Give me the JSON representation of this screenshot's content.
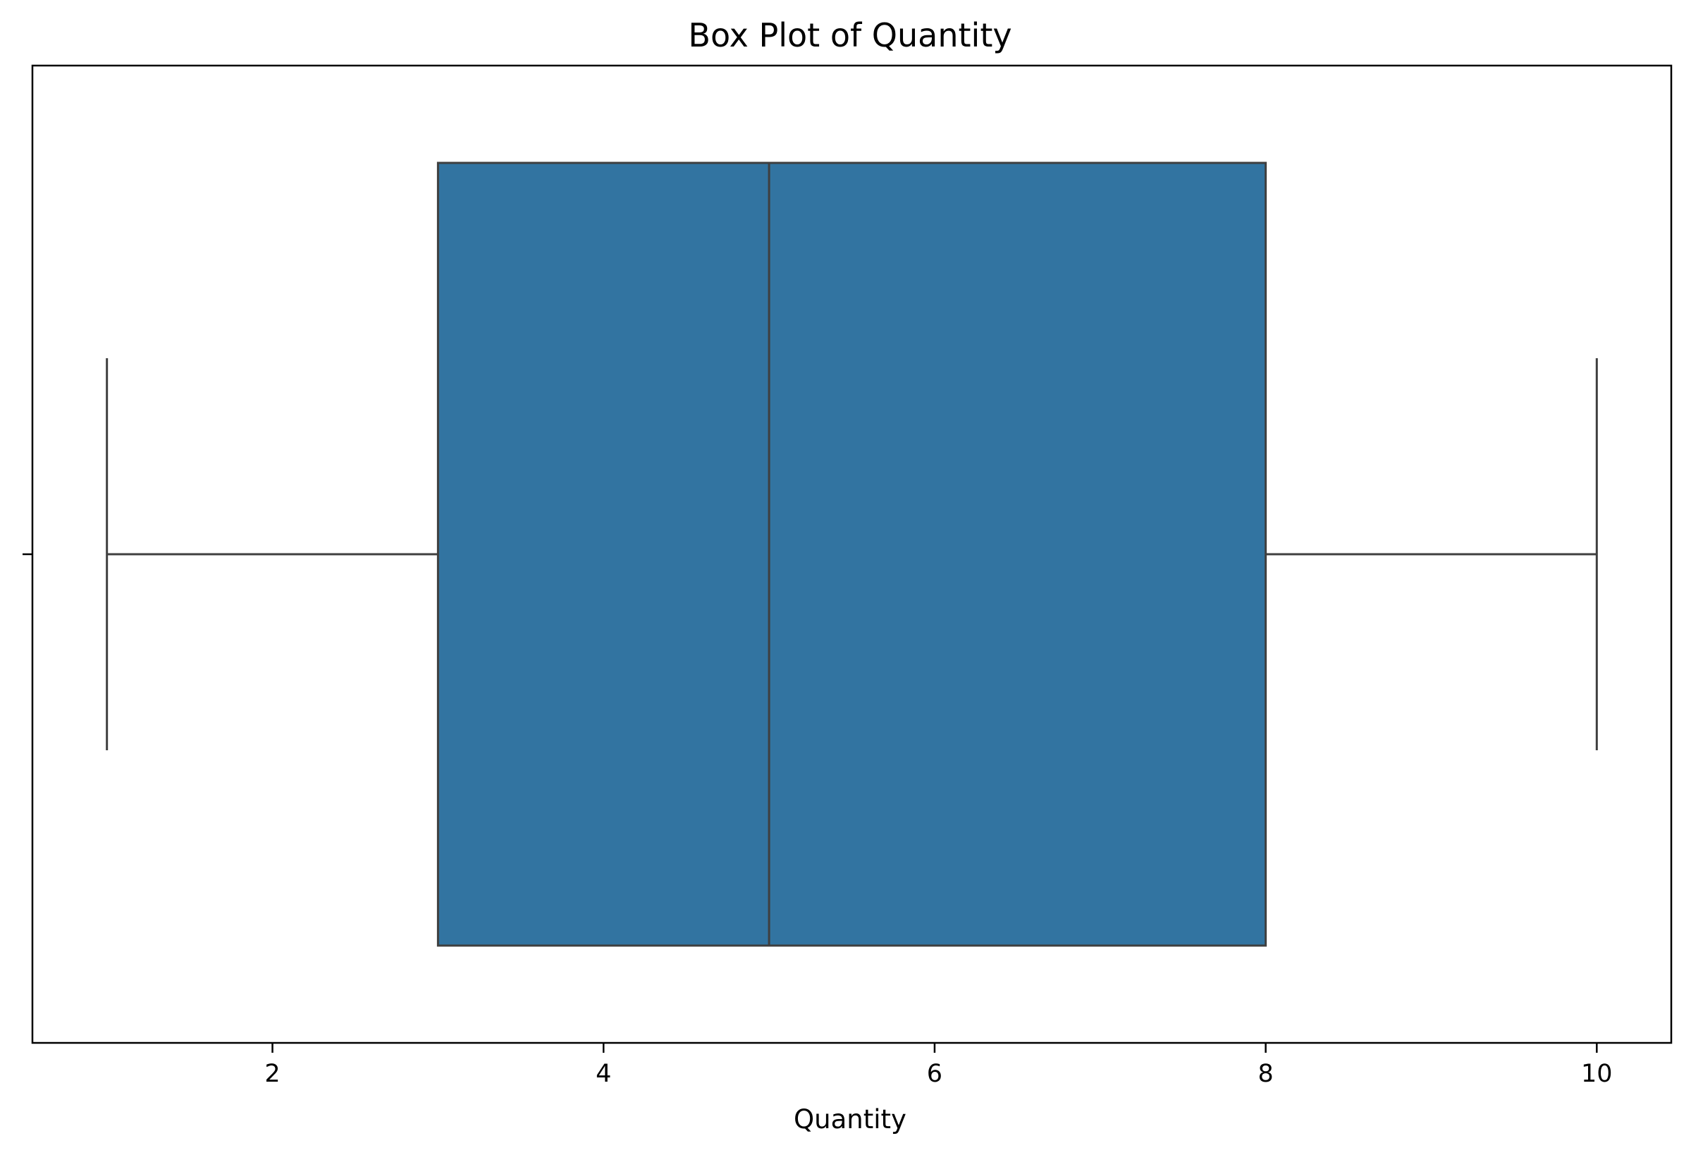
{
  "chart_data": {
    "type": "box",
    "title": "Box Plot of Quantity",
    "xlabel": "Quantity",
    "ylabel": "",
    "orientation": "horizontal",
    "xlim": [
      0.55,
      10.45
    ],
    "xticks": [
      2,
      4,
      6,
      8,
      10
    ],
    "xtick_labels": [
      "2",
      "4",
      "6",
      "8",
      "10"
    ],
    "grid": false,
    "box": {
      "whisker_low": 1,
      "q1": 3,
      "median": 5,
      "q3": 8,
      "whisker_high": 10,
      "outliers": []
    },
    "colors": {
      "box_fill": "#3274a1",
      "line": "#3f3f3f",
      "axes": "#000000"
    }
  }
}
